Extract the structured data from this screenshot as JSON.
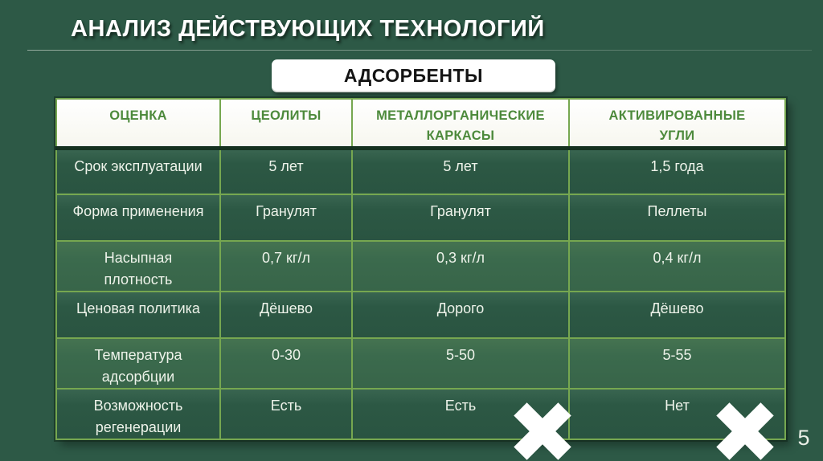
{
  "slide": {
    "title": "АНАЛИЗ ДЕЙСТВУЮЩИХ ТЕХНОЛОГИЙ",
    "page_number": "5"
  },
  "banner": {
    "label": "АДСОРБЕНТЫ"
  },
  "table": {
    "headers": [
      "ОЦЕНКА",
      "ЦЕОЛИТЫ",
      "МЕТАЛЛОРГАНИЧЕСКИЕ\nКАРКАСЫ",
      "АКТИВИРОВАННЫЕ\nУГЛИ"
    ],
    "rows": [
      {
        "label": "Срок эксплуатации",
        "values": [
          "5 лет",
          "5 лет",
          "1,5 года"
        ]
      },
      {
        "label": "Форма применения",
        "values": [
          "Гранулят",
          "Гранулят",
          "Пеллеты"
        ]
      },
      {
        "label": "Насыпная\nплотность",
        "values": [
          "0,7 кг/л",
          "0,3 кг/л",
          "0,4 кг/л"
        ]
      },
      {
        "label": "Ценовая политика",
        "values": [
          "Дёшево",
          "Дорого",
          "Дёшево"
        ]
      },
      {
        "label": "Температура\nадсорбции",
        "values": [
          "0-30",
          "5-50",
          "5-55"
        ]
      },
      {
        "label": "Возможность\nрегенерации",
        "values": [
          "Есть",
          "Есть",
          "Нет"
        ]
      }
    ]
  },
  "icons": {
    "cross": "x-mark rejection cross over 'МЕТАЛЛОРГАНИЧЕСКИЕ КАРКАСЫ' and 'АКТИВИРОВАННЫЕ УГЛИ' columns"
  },
  "colors": {
    "background": "#2d5946",
    "table_border": "#76a750",
    "header_background": "#fbfbf4",
    "header_text": "#4d8a3c",
    "row_dark": "#2c5844",
    "row_light": "#3b6a4d",
    "body_text": "#eef3ea",
    "title_text": "#ffffff",
    "banner_background": "#ffffff",
    "banner_text": "#141414",
    "cross": "#ffffff"
  }
}
